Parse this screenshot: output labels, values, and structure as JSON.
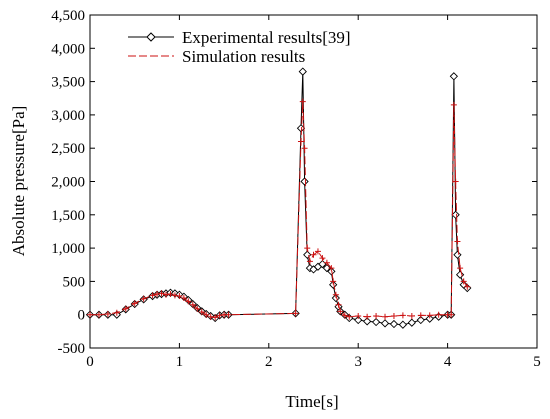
{
  "chart_data": {
    "type": "line",
    "xlabel": "Time[s]",
    "ylabel": "Absolute pressure[Pa]",
    "xlim": [
      0,
      5
    ],
    "ylim": [
      -500,
      4500
    ],
    "x_ticks": [
      "0",
      "1",
      "2",
      "3",
      "4",
      "5"
    ],
    "y_ticks": [
      "-500",
      "0",
      "500",
      "1,000",
      "1,500",
      "2,000",
      "2,500",
      "3,000",
      "3,500",
      "4,000",
      "4,500"
    ],
    "grid": false,
    "legend_position": "top-left",
    "series": [
      {
        "name": "Experimental results[39]",
        "color": "#000000",
        "marker": "diamond",
        "x": [
          0.0,
          0.1,
          0.2,
          0.3,
          0.4,
          0.5,
          0.6,
          0.7,
          0.75,
          0.8,
          0.85,
          0.9,
          0.95,
          1.0,
          1.05,
          1.1,
          1.15,
          1.2,
          1.25,
          1.3,
          1.35,
          1.4,
          1.45,
          1.5,
          1.55,
          2.3,
          2.36,
          2.38,
          2.4,
          2.43,
          2.46,
          2.5,
          2.55,
          2.6,
          2.65,
          2.7,
          2.72,
          2.75,
          2.78,
          2.8,
          2.85,
          2.9,
          3.0,
          3.1,
          3.2,
          3.3,
          3.4,
          3.5,
          3.6,
          3.7,
          3.8,
          3.9,
          4.0,
          4.04,
          4.07,
          4.09,
          4.11,
          4.14,
          4.18,
          4.22
        ],
        "y": [
          0,
          0,
          0,
          0,
          80,
          160,
          230,
          280,
          300,
          310,
          320,
          330,
          320,
          300,
          270,
          220,
          160,
          100,
          50,
          10,
          -20,
          -50,
          -10,
          0,
          0,
          20,
          2800,
          3650,
          2000,
          900,
          700,
          680,
          720,
          760,
          700,
          650,
          450,
          250,
          120,
          50,
          0,
          -50,
          -80,
          -100,
          -110,
          -130,
          -140,
          -150,
          -120,
          -80,
          -60,
          -30,
          0,
          0,
          3580,
          1500,
          900,
          600,
          450,
          400
        ]
      },
      {
        "name": "Simulation results",
        "color": "#cc1111",
        "marker": "plus",
        "x": [
          0.0,
          0.1,
          0.2,
          0.3,
          0.4,
          0.5,
          0.6,
          0.7,
          0.75,
          0.8,
          0.85,
          0.9,
          0.95,
          1.0,
          1.05,
          1.1,
          1.15,
          1.2,
          1.25,
          1.3,
          1.35,
          1.4,
          1.45,
          1.5,
          1.55,
          2.3,
          2.36,
          2.38,
          2.4,
          2.43,
          2.46,
          2.5,
          2.55,
          2.6,
          2.65,
          2.7,
          2.72,
          2.75,
          2.78,
          2.8,
          2.85,
          2.9,
          3.0,
          3.1,
          3.2,
          3.3,
          3.4,
          3.5,
          3.6,
          3.7,
          3.8,
          3.9,
          4.0,
          4.04,
          4.07,
          4.09,
          4.11,
          4.14,
          4.18,
          4.22
        ],
        "y": [
          0,
          0,
          10,
          30,
          90,
          170,
          240,
          290,
          310,
          320,
          300,
          310,
          290,
          280,
          250,
          200,
          150,
          90,
          40,
          0,
          -30,
          -40,
          -10,
          0,
          0,
          20,
          2600,
          3200,
          2500,
          1000,
          800,
          900,
          950,
          850,
          780,
          700,
          500,
          300,
          150,
          50,
          -10,
          -30,
          -20,
          -30,
          -20,
          -30,
          -20,
          -10,
          -20,
          -10,
          -10,
          0,
          0,
          0,
          3150,
          2000,
          1100,
          700,
          500,
          420
        ]
      }
    ]
  }
}
